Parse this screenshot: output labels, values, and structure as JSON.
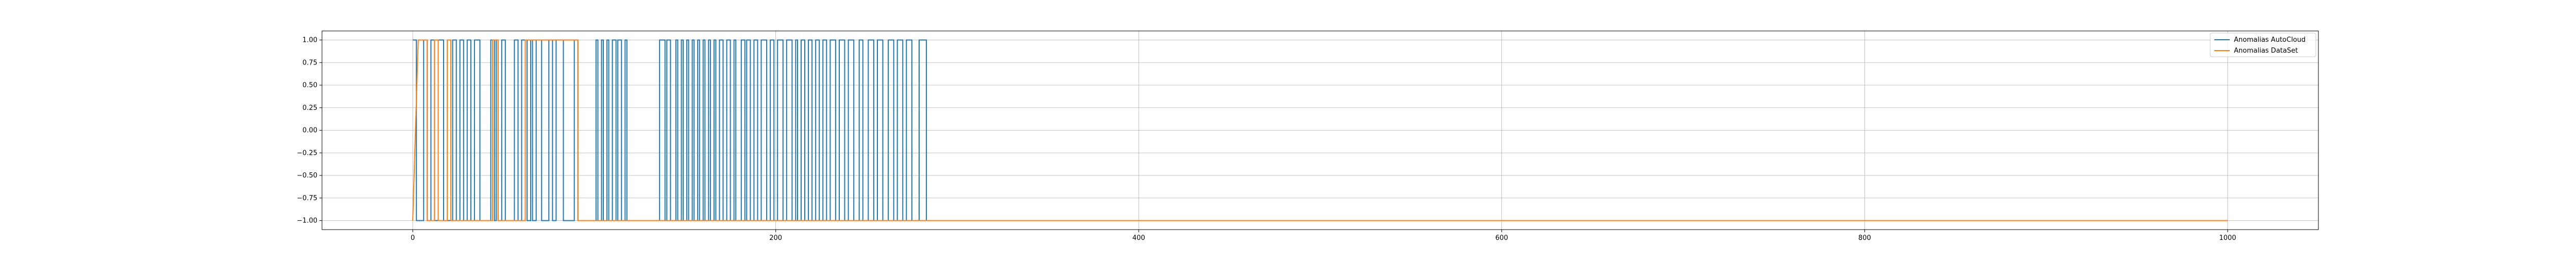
{
  "chart_data": {
    "type": "line",
    "title": "",
    "xlabel": "",
    "ylabel": "",
    "xlim": [
      -50,
      1050
    ],
    "ylim": [
      -1.1,
      1.1
    ],
    "grid": true,
    "legend_position": "top-right",
    "x_ticks": [
      0,
      200,
      400,
      600,
      800,
      1000
    ],
    "x_tick_labels": [
      "0",
      "200",
      "400",
      "600",
      "800",
      "1000"
    ],
    "y_ticks": [
      1.0,
      0.75,
      0.5,
      0.25,
      0.0,
      -0.25,
      -0.5,
      -0.75,
      -1.0
    ],
    "y_tick_labels": [
      "1.00",
      "0.75",
      "0.50",
      "0.25",
      "0.00",
      "−0.25",
      "−0.50",
      "−0.75",
      "−1.00"
    ],
    "series": [
      {
        "name": "Anomalias AutoCloud",
        "color": "#1f77b4",
        "x_end": 283,
        "pulse_starts": [
          0,
          6,
          10,
          14,
          22,
          26,
          30,
          34,
          43,
          46,
          49,
          56,
          60,
          65,
          68,
          75,
          79,
          89,
          101,
          104,
          107,
          110,
          113,
          117,
          136,
          140,
          145,
          148,
          151,
          154,
          157,
          160,
          163,
          166,
          169,
          173,
          177,
          181,
          184,
          188,
          192,
          197,
          201,
          206,
          211,
          214,
          218,
          222,
          226,
          230,
          235,
          240,
          246,
          251,
          256,
          262,
          267,
          272,
          279
        ],
        "pulse_widths": [
          2,
          2,
          2,
          3,
          2,
          2,
          2,
          3,
          2,
          1,
          2,
          2,
          3,
          1,
          3,
          2,
          4,
          2,
          1,
          1,
          1,
          2,
          2,
          1,
          3,
          2,
          1,
          1,
          1,
          1,
          1,
          1,
          1,
          1,
          2,
          2,
          1,
          2,
          2,
          2,
          3,
          2,
          3,
          3,
          1,
          2,
          2,
          2,
          2,
          3,
          3,
          3,
          2,
          3,
          3,
          3,
          3,
          3,
          4
        ]
      },
      {
        "name": "Anomalias DataSet",
        "color": "#ff7f0e",
        "x_end": 1000,
        "pulse_starts": [
          3,
          12,
          19,
          44,
          62
        ],
        "pulse_widths": [
          5,
          2,
          2,
          3,
          29
        ]
      }
    ]
  }
}
